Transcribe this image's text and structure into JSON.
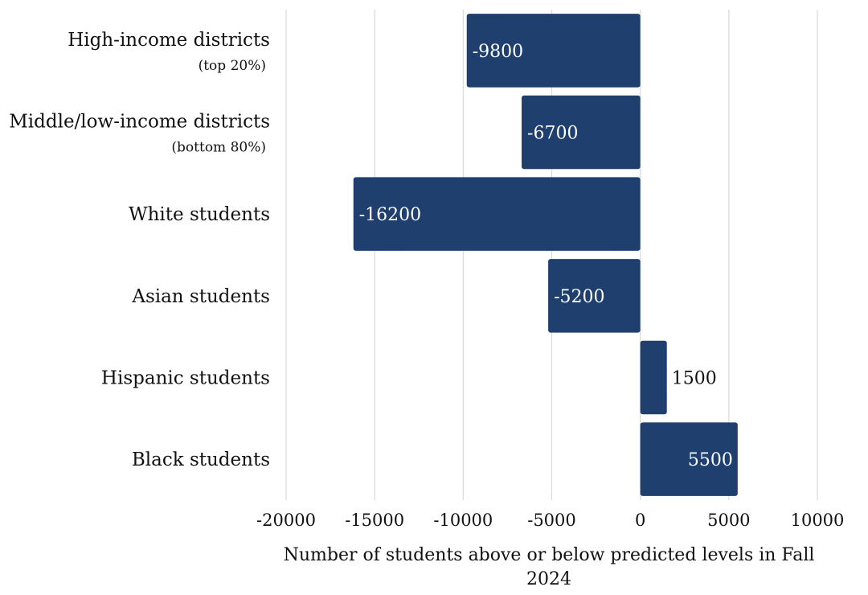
{
  "chart_data": {
    "type": "bar",
    "orientation": "horizontal",
    "categories": [
      {
        "label": "High-income districts",
        "sublabel": "(top 20%)"
      },
      {
        "label": "Middle/low-income districts",
        "sublabel": "(bottom 80%)"
      },
      {
        "label": "White students",
        "sublabel": ""
      },
      {
        "label": "Asian students",
        "sublabel": ""
      },
      {
        "label": "Hispanic students",
        "sublabel": ""
      },
      {
        "label": "Black students",
        "sublabel": ""
      }
    ],
    "values": [
      -9800,
      -6700,
      -16200,
      -5200,
      1500,
      5500
    ],
    "data_labels": [
      "-9800",
      "-6700",
      "-16200",
      "-5200",
      "1500",
      "5500"
    ],
    "x_ticks": [
      "-20000",
      "-15000",
      "-10000",
      "-5000",
      "0",
      "5000",
      "10000"
    ],
    "xlim": [
      -20000,
      10000
    ],
    "xlabel_lines": [
      "Number of  students above or below predicted levels in Fall",
      "2024"
    ],
    "grid": "vertical",
    "legend": "none",
    "bar_color": "#1f3f6e"
  }
}
